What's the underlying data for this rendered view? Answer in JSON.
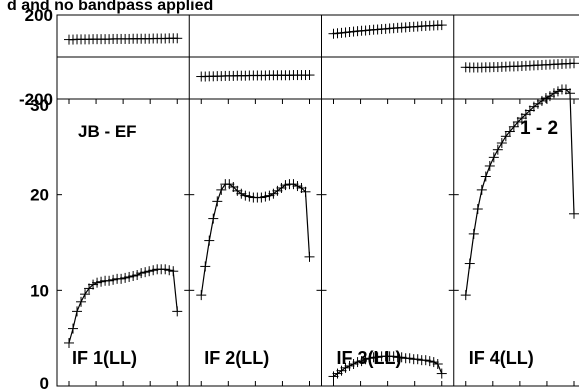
{
  "header_text": "d and no bandpass applied",
  "baseline_label": "JB - EF",
  "correlation_label": "1 - 2",
  "chart_data": [
    {
      "type": "line",
      "role": "phase",
      "ylim": [
        -200,
        200
      ],
      "yticks": [
        "200",
        "-200"
      ],
      "grid": false,
      "panels": [
        {
          "name": "IF 1(LL)",
          "x": [
            0,
            1,
            2,
            3,
            4,
            5,
            6,
            7,
            8,
            9,
            10,
            11,
            12,
            13,
            14,
            15,
            16,
            17,
            18,
            19,
            20,
            21,
            22,
            23,
            24,
            25,
            26,
            27
          ],
          "values": [
            83,
            83,
            84,
            84,
            84,
            84,
            85,
            85,
            85,
            85,
            85,
            86,
            86,
            86,
            86,
            86,
            87,
            87,
            87,
            87,
            87,
            88,
            88,
            88,
            88,
            89,
            89,
            89
          ]
        },
        {
          "name": "IF 2(LL)",
          "x": [
            0,
            1,
            2,
            3,
            4,
            5,
            6,
            7,
            8,
            9,
            10,
            11,
            12,
            13,
            14,
            15,
            16,
            17,
            18,
            19,
            20,
            21,
            22,
            23,
            24,
            25,
            26,
            27
          ],
          "values": [
            -93,
            -93,
            -92,
            -92,
            -91,
            -91,
            -90,
            -90,
            -90,
            -89,
            -89,
            -89,
            -88,
            -88,
            -88,
            -88,
            -88,
            -87,
            -87,
            -87,
            -87,
            -87,
            -87,
            -86,
            -86,
            -86,
            -86,
            -86
          ]
        },
        {
          "name": "IF 3(LL)",
          "x": [
            0,
            1,
            2,
            3,
            4,
            5,
            6,
            7,
            8,
            9,
            10,
            11,
            12,
            13,
            14,
            15,
            16,
            17,
            18,
            19,
            20,
            21,
            22,
            23,
            24,
            25,
            26,
            27
          ],
          "values": [
            111,
            113,
            115,
            117,
            119,
            121,
            123,
            125,
            126,
            128,
            130,
            131,
            133,
            134,
            136,
            137,
            139,
            140,
            141,
            143,
            144,
            145,
            147,
            148,
            149,
            150,
            151,
            152
          ]
        },
        {
          "name": "IF 4(LL)",
          "x": [
            0,
            1,
            2,
            3,
            4,
            5,
            6,
            7,
            8,
            9,
            10,
            11,
            12,
            13,
            14,
            15,
            16,
            17,
            18,
            19,
            20,
            21,
            22,
            23,
            24,
            25,
            26,
            27
          ],
          "values": [
            -49,
            -50,
            -50,
            -50,
            -50,
            -49,
            -49,
            -48,
            -48,
            -47,
            -46,
            -45,
            -45,
            -44,
            -43,
            -42,
            -41,
            -40,
            -39,
            -38,
            -37,
            -36,
            -35,
            -34,
            -33,
            -32,
            -31,
            -30
          ]
        }
      ]
    },
    {
      "type": "line",
      "role": "amplitude",
      "ylim": [
        0,
        30
      ],
      "yticks": [
        "30",
        "20",
        "10",
        "0"
      ],
      "grid": false,
      "panels": [
        {
          "name": "IF 1(LL)",
          "x": [
            0,
            1,
            2,
            3,
            4,
            5,
            6,
            7,
            8,
            9,
            10,
            11,
            12,
            13,
            14,
            15,
            16,
            17,
            18,
            19,
            20,
            21,
            22,
            23,
            24,
            25,
            26,
            27
          ],
          "values": [
            4.5,
            6.0,
            7.8,
            8.8,
            9.6,
            10.2,
            10.6,
            10.8,
            10.9,
            11.0,
            11.0,
            11.1,
            11.2,
            11.2,
            11.3,
            11.4,
            11.5,
            11.6,
            11.8,
            11.9,
            12.0,
            12.1,
            12.2,
            12.2,
            12.2,
            12.1,
            12.0,
            7.8
          ]
        },
        {
          "name": "IF 2(LL)",
          "x": [
            0,
            1,
            2,
            3,
            4,
            5,
            6,
            7,
            8,
            9,
            10,
            11,
            12,
            13,
            14,
            15,
            16,
            17,
            18,
            19,
            20,
            21,
            22,
            23,
            24,
            25,
            26,
            27
          ],
          "values": [
            9.5,
            12.5,
            15.2,
            17.5,
            19.3,
            20.5,
            21.1,
            21.1,
            20.8,
            20.4,
            20.1,
            19.9,
            19.8,
            19.7,
            19.7,
            19.7,
            19.8,
            19.9,
            20.1,
            20.4,
            20.7,
            21.0,
            21.1,
            21.1,
            20.9,
            20.7,
            20.3,
            13.5
          ]
        },
        {
          "name": "IF 3(LL)",
          "x": [
            0,
            1,
            2,
            3,
            4,
            5,
            6,
            7,
            8,
            9,
            10,
            11,
            12,
            13,
            14,
            15,
            16,
            17,
            18,
            19,
            20,
            21,
            22,
            23,
            24,
            25,
            26,
            27
          ],
          "values": [
            1.0,
            1.3,
            1.6,
            1.9,
            2.1,
            2.3,
            2.5,
            2.6,
            2.8,
            2.9,
            3.0,
            3.0,
            3.1,
            3.1,
            3.1,
            3.1,
            3.0,
            3.0,
            2.9,
            2.9,
            2.8,
            2.8,
            2.7,
            2.7,
            2.6,
            2.5,
            2.3,
            1.3
          ]
        },
        {
          "name": "IF 4(LL)",
          "x": [
            0,
            1,
            2,
            3,
            4,
            5,
            6,
            7,
            8,
            9,
            10,
            11,
            12,
            13,
            14,
            15,
            16,
            17,
            18,
            19,
            20,
            21,
            22,
            23,
            24,
            25,
            26,
            27
          ],
          "values": [
            9.5,
            12.8,
            15.9,
            18.5,
            20.5,
            21.9,
            23.0,
            23.9,
            24.7,
            25.4,
            26.1,
            26.6,
            27.1,
            27.6,
            28.0,
            28.4,
            28.8,
            29.2,
            29.5,
            29.8,
            30.1,
            30.3,
            30.6,
            30.8,
            31.0,
            31.0,
            30.6,
            18.0
          ]
        }
      ]
    }
  ]
}
